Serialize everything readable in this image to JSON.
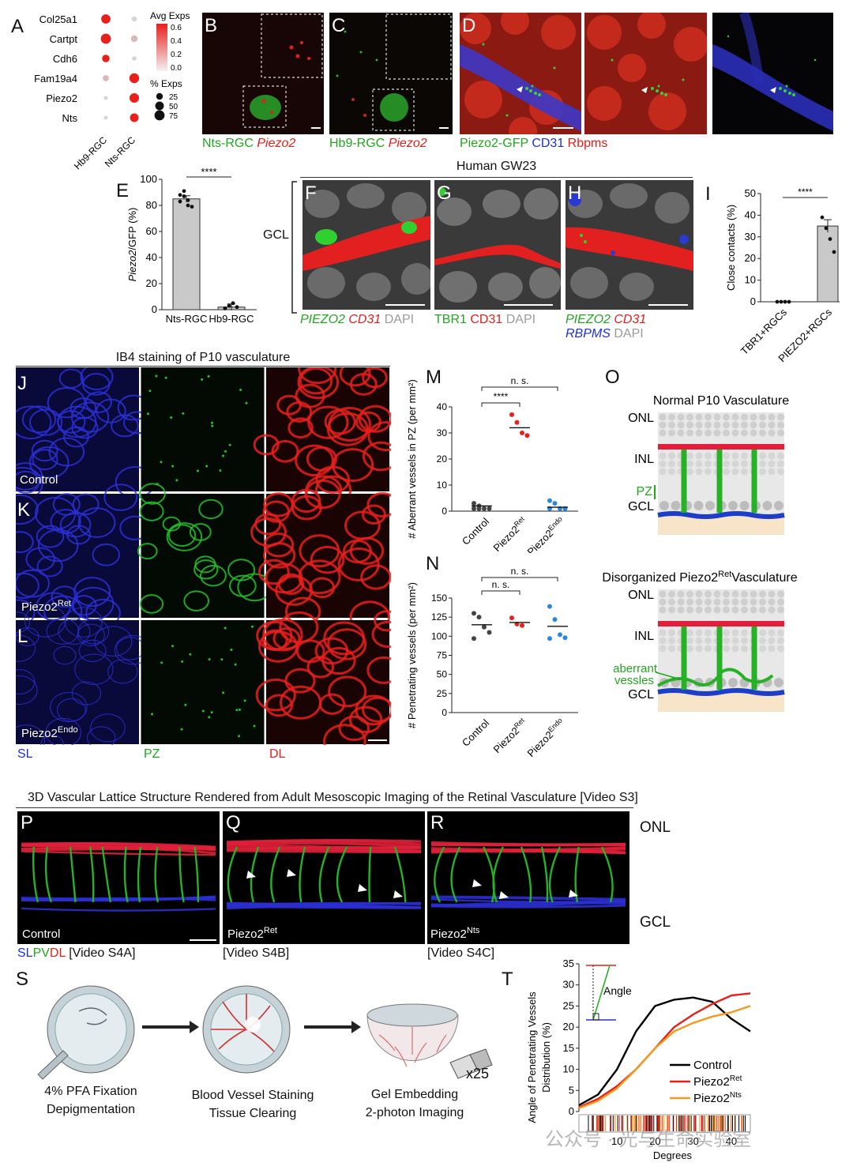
{
  "panel_letters": {
    "A": "A",
    "B": "B",
    "C": "C",
    "D": "D",
    "E": "E",
    "F": "F",
    "G": "G",
    "H": "H",
    "I": "I",
    "J": "J",
    "K": "K",
    "L": "L",
    "M": "M",
    "N": "N",
    "O": "O",
    "P": "P",
    "Q": "Q",
    "R": "R",
    "S": "S",
    "T": "T"
  },
  "panel_a": {
    "genes": [
      "Col25a1",
      "Cartpt",
      "Cdh6",
      "Fam19a4",
      "Piezo2",
      "Nts"
    ],
    "groups": [
      "Hb9-RGC",
      "Nts-RGC"
    ],
    "legend_avg_title": "Avg Exps",
    "legend_avg_ticks": [
      "0.6",
      "0.4",
      "0.2",
      "0.0"
    ],
    "legend_pct_title": "% Exps",
    "legend_pct_ticks": [
      "25",
      "50",
      "75"
    ],
    "colors": {
      "high": "#e8201c",
      "low": "#d6d6d6"
    },
    "dots": [
      {
        "gene": "Col25a1",
        "group": "Hb9-RGC",
        "avg": 0.6,
        "pct": 60
      },
      {
        "gene": "Col25a1",
        "group": "Nts-RGC",
        "avg": 0.0,
        "pct": 12
      },
      {
        "gene": "Cartpt",
        "group": "Hb9-RGC",
        "avg": 0.6,
        "pct": 75
      },
      {
        "gene": "Cartpt",
        "group": "Nts-RGC",
        "avg": 0.1,
        "pct": 25
      },
      {
        "gene": "Cdh6",
        "group": "Hb9-RGC",
        "avg": 0.6,
        "pct": 35
      },
      {
        "gene": "Cdh6",
        "group": "Nts-RGC",
        "avg": 0.0,
        "pct": 8
      },
      {
        "gene": "Fam19a4",
        "group": "Hb9-RGC",
        "avg": 0.1,
        "pct": 20
      },
      {
        "gene": "Fam19a4",
        "group": "Nts-RGC",
        "avg": 0.6,
        "pct": 70
      },
      {
        "gene": "Piezo2",
        "group": "Hb9-RGC",
        "avg": 0.0,
        "pct": 5
      },
      {
        "gene": "Piezo2",
        "group": "Nts-RGC",
        "avg": 0.6,
        "pct": 65
      },
      {
        "gene": "Nts",
        "group": "Hb9-RGC",
        "avg": 0.0,
        "pct": 5
      },
      {
        "gene": "Nts",
        "group": "Nts-RGC",
        "avg": 0.6,
        "pct": 50
      }
    ]
  },
  "panel_b": {
    "caption_green": "Nts-RGC",
    "caption_red": "Piezo2"
  },
  "panel_c": {
    "caption_green": "Hb9-RGC",
    "caption_red": "Piezo2"
  },
  "panel_d": {
    "caption_green": "Piezo2-GFP",
    "caption_blue": "CD31",
    "caption_red": "Rbpms"
  },
  "panel_e": {
    "ylabel_italic": "Piezo2",
    "ylabel_rest": "/GFP (%)",
    "yticks": [
      "100",
      "80",
      "60",
      "40",
      "20",
      "0"
    ],
    "categories": [
      "Nts-RGC",
      "Hb9-RGC"
    ],
    "sig": "****"
  },
  "human_header": "Human GW23",
  "gcl_label": "GCL",
  "panel_f": {
    "c1": "PIEZO2",
    "c2": "CD31",
    "c3": "DAPI"
  },
  "panel_g": {
    "c1": "TBR1",
    "c2": "CD31",
    "c3": "DAPI"
  },
  "panel_h": {
    "c1": "PIEZO2",
    "c2": "CD31",
    "c3": "RBPMS",
    "c4": "DAPI"
  },
  "panel_i": {
    "ylabel": "Close contacts (%)",
    "yticks": [
      "50",
      "40",
      "30",
      "20",
      "10",
      "0"
    ],
    "categories": [
      "TBR1+RGCs",
      "PIEZO2+RGCs"
    ],
    "sig": "****"
  },
  "ib4_header": "IB4 staining of P10 vasculature",
  "jkl": {
    "row_labels": {
      "control": "Control",
      "ret_base": "Piezo2",
      "ret_sup": "Ret",
      "endo_base": "Piezo2",
      "endo_sup": "Endo"
    },
    "col_labels": {
      "sl": "SL",
      "pz": "PZ",
      "dl": "DL"
    }
  },
  "panel_m": {
    "ylabel": "# Aberrant vessels in PZ (per mm²)",
    "yticks": [
      "40",
      "30",
      "20",
      "10",
      "0"
    ],
    "categories": [
      {
        "base": "Control",
        "sup": ""
      },
      {
        "base": "Piezo2",
        "sup": "Ret"
      },
      {
        "base": "Piezo2",
        "sup": "Endo"
      }
    ],
    "sig_top": "n. s.",
    "sig_mid": "****"
  },
  "panel_n": {
    "ylabel": "# Penetrating vessels (per mm²)",
    "yticks": [
      "150",
      "125",
      "100",
      "75",
      "50",
      "25",
      "0"
    ],
    "categories": [
      {
        "base": "Control",
        "sup": ""
      },
      {
        "base": "Piezo2",
        "sup": "Ret"
      },
      {
        "base": "Piezo2",
        "sup": "Endo"
      }
    ],
    "sig_top": "n. s.",
    "sig_mid": "n. s."
  },
  "panel_o": {
    "title1": "Normal P10 Vasculature",
    "title2_pre": "Disorganized Piezo2",
    "title2_sup": "Ret",
    "title2_post": "Vasculature",
    "onl": "ONL",
    "inl": "INL",
    "pz": "PZ",
    "gcl": "GCL",
    "aberrant1": "aberrant",
    "aberrant2": "vessles"
  },
  "mesoscopic_header": "3D Vascular Lattice Structure Rendered from Adult Mesoscopic Imaging of the Retinal Vasculature",
  "video_s3": "[Video S3]",
  "pqr": {
    "onl": "ONL",
    "gcl": "GCL",
    "control": "Control",
    "ret_base": "Piezo2",
    "ret_sup": "Ret",
    "nts_base": "Piezo2",
    "nts_sup": "Nts",
    "sl": "SL",
    "pv": "PV",
    "dl": "DL",
    "video_a": "[Video S4A]",
    "video_b": "[Video S4B]",
    "video_c": "[Video S4C]"
  },
  "panel_s": {
    "step1a": "4% PFA Fixation",
    "step1b": "Depigmentation",
    "step2a": "Blood Vessel Staining",
    "step2b": "Tissue Clearing",
    "step3a": "Gel Embedding",
    "step3b": "2-photon Imaging",
    "objective": "x25"
  },
  "panel_t": {
    "ylabel1": "Angle of Penetrating Vessels",
    "ylabel2": "Distribution (%)",
    "xlabel": "Degrees",
    "yticks": [
      "35",
      "30",
      "25",
      "20",
      "15",
      "10",
      "5",
      "0"
    ],
    "xticks": [
      "10",
      "20",
      "30",
      "40"
    ],
    "inset_label": "Angle",
    "legend": [
      {
        "base": "Control",
        "sup": ""
      },
      {
        "base": "Piezo2",
        "sup": "Ret"
      },
      {
        "base": "Piezo2",
        "sup": "Nts"
      }
    ]
  },
  "watermark": "公众号 · 光与生命实验室",
  "chart_data": [
    {
      "type": "bar",
      "title": "",
      "ylabel": "Piezo2/GFP (%)",
      "categories": [
        "Nts-RGC",
        "Hb9-RGC"
      ],
      "values": [
        85,
        2
      ],
      "ylim": [
        0,
        100
      ],
      "points": [
        [
          88,
          91,
          84,
          79,
          83,
          87,
          80
        ],
        [
          1,
          3,
          5,
          2,
          1
        ]
      ]
    },
    {
      "type": "bar",
      "title": "",
      "ylabel": "Close contacts (%)",
      "categories": [
        "TBR1+RGCs",
        "PIEZO2+RGCs"
      ],
      "values": [
        0,
        35
      ],
      "ylim": [
        0,
        50
      ],
      "points": [
        [
          0,
          0,
          0,
          0
        ],
        [
          39,
          34,
          29,
          23
        ]
      ]
    },
    {
      "type": "scatter",
      "title": "",
      "ylabel": "# Aberrant vessels in PZ (per mm²)",
      "categories": [
        "Control",
        "Piezo2Ret",
        "Piezo2Endo"
      ],
      "ylim": [
        0,
        40
      ],
      "means": [
        2,
        32,
        1.5
      ],
      "points": [
        [
          3,
          1,
          1,
          1,
          1,
          2
        ],
        [
          37,
          34,
          30,
          29
        ],
        [
          4,
          3,
          1,
          1,
          1
        ]
      ]
    },
    {
      "type": "scatter",
      "title": "",
      "ylabel": "# Penetrating vessels (per mm²)",
      "categories": [
        "Control",
        "Piezo2Ret",
        "Piezo2Endo"
      ],
      "ylim": [
        0,
        150
      ],
      "means": [
        115,
        118,
        113
      ],
      "points": [
        [
          130,
          125,
          112,
          105,
          97
        ],
        [
          124,
          116,
          114
        ],
        [
          139,
          122,
          102,
          98,
          97
        ]
      ]
    },
    {
      "type": "line",
      "title": "",
      "xlabel": "Degrees",
      "ylabel": "Angle of Penetrating Vessels Distribution (%)",
      "xlim": [
        0,
        45
      ],
      "ylim": [
        0,
        35
      ],
      "series": [
        {
          "name": "Control",
          "color": "#000000",
          "x": [
            0,
            5,
            10,
            15,
            20,
            25,
            30,
            35,
            40,
            45
          ],
          "y": [
            1.5,
            4,
            10,
            19,
            25,
            26.5,
            27,
            26,
            22,
            19
          ]
        },
        {
          "name": "Piezo2Ret",
          "color": "#e8201c",
          "x": [
            0,
            5,
            10,
            15,
            20,
            25,
            30,
            35,
            40,
            45
          ],
          "y": [
            1,
            3,
            6,
            10,
            15,
            20,
            23,
            25.5,
            27.5,
            28
          ]
        },
        {
          "name": "Piezo2Nts",
          "color": "#f39a1e",
          "x": [
            0,
            5,
            10,
            15,
            20,
            25,
            30,
            35,
            40,
            45
          ],
          "y": [
            0.8,
            2.5,
            5.5,
            10,
            15,
            19,
            21,
            22.5,
            23.5,
            25
          ]
        }
      ]
    }
  ]
}
